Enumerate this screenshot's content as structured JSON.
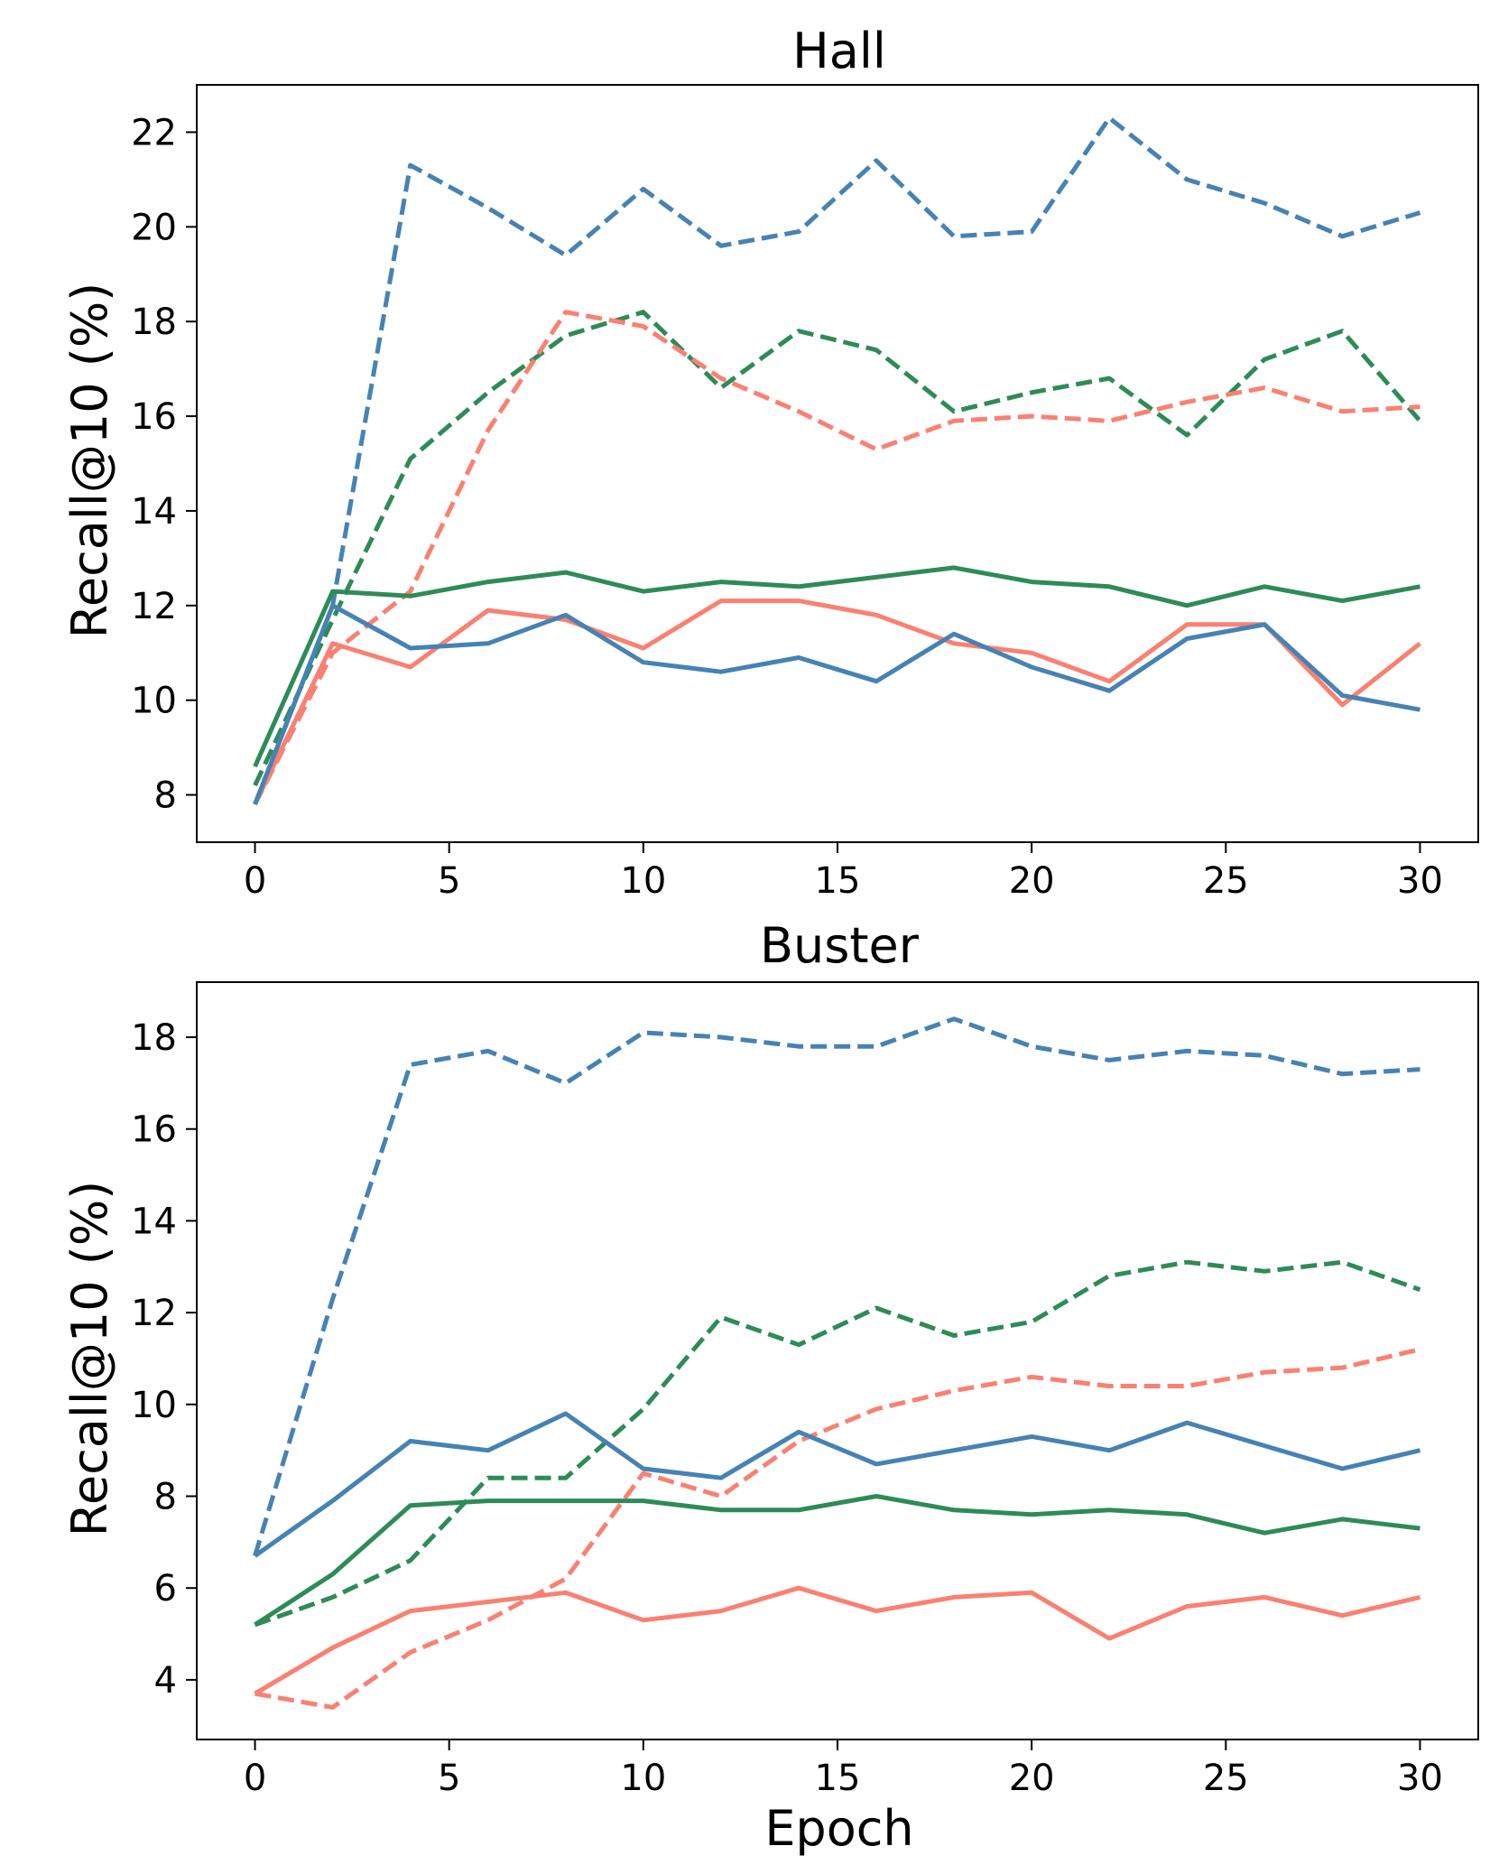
{
  "chart_data": [
    {
      "type": "line",
      "title": "Hall",
      "xlabel": "",
      "ylabel": "Recall@10 (%)",
      "xlim": [
        -1.5,
        31.5
      ],
      "ylim": [
        7.0,
        23.0
      ],
      "xticks": [
        0,
        5,
        10,
        15,
        20,
        25,
        30
      ],
      "yticks": [
        8,
        10,
        12,
        14,
        16,
        18,
        20,
        22
      ],
      "grid": false,
      "x": [
        0,
        2,
        4,
        6,
        8,
        10,
        12,
        14,
        16,
        18,
        20,
        22,
        24,
        26,
        28,
        30
      ],
      "series": [
        {
          "name": "blue-dashed",
          "color": "#4682b4",
          "style": "dashed",
          "values": [
            7.8,
            12.0,
            21.3,
            20.4,
            19.4,
            20.8,
            19.6,
            19.9,
            21.4,
            19.8,
            19.9,
            22.3,
            21.0,
            20.5,
            19.8,
            20.3
          ]
        },
        {
          "name": "green-dashed",
          "color": "#2e8b57",
          "style": "dashed",
          "values": [
            8.2,
            11.7,
            15.1,
            16.5,
            17.7,
            18.2,
            16.6,
            17.8,
            17.4,
            16.1,
            16.5,
            16.8,
            15.6,
            17.2,
            17.8,
            15.9
          ]
        },
        {
          "name": "salmon-dashed",
          "color": "#fa8072",
          "style": "dashed",
          "values": [
            7.8,
            11.0,
            12.3,
            15.7,
            18.2,
            17.9,
            16.8,
            16.1,
            15.3,
            15.9,
            16.0,
            15.9,
            16.3,
            16.6,
            16.1,
            16.2
          ]
        },
        {
          "name": "green-solid",
          "color": "#2e8b57",
          "style": "solid",
          "values": [
            8.6,
            12.3,
            12.2,
            12.5,
            12.7,
            12.3,
            12.5,
            12.4,
            12.6,
            12.8,
            12.5,
            12.4,
            12.0,
            12.4,
            12.1,
            12.4
          ]
        },
        {
          "name": "salmon-solid",
          "color": "#fa8072",
          "style": "solid",
          "values": [
            7.8,
            11.2,
            10.7,
            11.9,
            11.7,
            11.1,
            12.1,
            12.1,
            11.8,
            11.2,
            11.0,
            10.4,
            11.6,
            11.6,
            9.9,
            11.2
          ]
        },
        {
          "name": "blue-solid",
          "color": "#4682b4",
          "style": "solid",
          "values": [
            7.8,
            12.0,
            11.1,
            11.2,
            11.8,
            10.8,
            10.6,
            10.9,
            10.4,
            11.4,
            10.7,
            10.2,
            11.3,
            11.6,
            10.1,
            9.8
          ]
        }
      ]
    },
    {
      "type": "line",
      "title": "Buster",
      "xlabel": "Epoch",
      "ylabel": "Recall@10 (%)",
      "xlim": [
        -1.5,
        31.5
      ],
      "ylim": [
        2.7,
        19.2
      ],
      "xticks": [
        0,
        5,
        10,
        15,
        20,
        25,
        30
      ],
      "yticks": [
        4,
        6,
        8,
        10,
        12,
        14,
        16,
        18
      ],
      "grid": false,
      "x": [
        0,
        2,
        4,
        6,
        8,
        10,
        12,
        14,
        16,
        18,
        20,
        22,
        24,
        26,
        28,
        30
      ],
      "series": [
        {
          "name": "blue-dashed",
          "color": "#4682b4",
          "style": "dashed",
          "values": [
            6.7,
            12.3,
            17.4,
            17.7,
            17.0,
            18.1,
            18.0,
            17.8,
            17.8,
            18.4,
            17.8,
            17.5,
            17.7,
            17.6,
            17.2,
            17.3
          ]
        },
        {
          "name": "green-dashed",
          "color": "#2e8b57",
          "style": "dashed",
          "values": [
            5.2,
            5.8,
            6.6,
            8.4,
            8.4,
            9.9,
            11.9,
            11.3,
            12.1,
            11.5,
            11.8,
            12.8,
            13.1,
            12.9,
            13.1,
            12.5
          ]
        },
        {
          "name": "salmon-dashed",
          "color": "#fa8072",
          "style": "dashed",
          "values": [
            3.7,
            3.4,
            4.6,
            5.3,
            6.2,
            8.5,
            8.0,
            9.2,
            9.9,
            10.3,
            10.6,
            10.4,
            10.4,
            10.7,
            10.8,
            11.2
          ]
        },
        {
          "name": "blue-solid",
          "color": "#4682b4",
          "style": "solid",
          "values": [
            6.7,
            7.9,
            9.2,
            9.0,
            9.8,
            8.6,
            8.4,
            9.4,
            8.7,
            9.0,
            9.3,
            9.0,
            9.6,
            9.1,
            8.6,
            9.0
          ]
        },
        {
          "name": "green-solid",
          "color": "#2e8b57",
          "style": "solid",
          "values": [
            5.2,
            6.3,
            7.8,
            7.9,
            7.9,
            7.9,
            7.7,
            7.7,
            8.0,
            7.7,
            7.6,
            7.7,
            7.6,
            7.2,
            7.5,
            7.3
          ]
        },
        {
          "name": "salmon-solid",
          "color": "#fa8072",
          "style": "solid",
          "values": [
            3.7,
            4.7,
            5.5,
            5.7,
            5.9,
            5.3,
            5.5,
            6.0,
            5.5,
            5.8,
            5.9,
            4.9,
            5.6,
            5.8,
            5.4,
            5.8
          ]
        }
      ]
    }
  ]
}
